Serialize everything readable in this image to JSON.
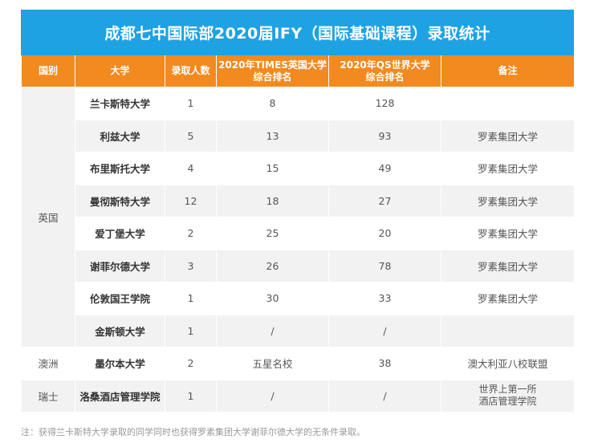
{
  "title": "成都七中国际部2020届IFY（国际基础课程）录取统计",
  "headers": {
    "country": "国别",
    "university": "大学",
    "admitted": "录取人数",
    "times_line1": "2020年TIMES英国大学",
    "times_line2": "综合排名",
    "qs_line1": "2020年QS世界大学",
    "qs_line2": "综合排名",
    "remark": "备注"
  },
  "countries": {
    "uk": "英国",
    "au": "澳洲",
    "ch": "瑞士"
  },
  "rows": [
    {
      "university": "兰卡斯特大学",
      "admitted": "1",
      "times": "8",
      "qs": "128",
      "remark": ""
    },
    {
      "university": "利兹大学",
      "admitted": "5",
      "times": "13",
      "qs": "93",
      "remark": "罗素集团大学"
    },
    {
      "university": "布里斯托大学",
      "admitted": "4",
      "times": "15",
      "qs": "49",
      "remark": "罗素集团大学"
    },
    {
      "university": "曼彻斯特大学",
      "admitted": "12",
      "times": "18",
      "qs": "27",
      "remark": "罗素集团大学"
    },
    {
      "university": "爱丁堡大学",
      "admitted": "2",
      "times": "25",
      "qs": "20",
      "remark": "罗素集团大学"
    },
    {
      "university": "谢菲尔德大学",
      "admitted": "3",
      "times": "26",
      "qs": "78",
      "remark": "罗素集团大学"
    },
    {
      "university": "伦敦国王学院",
      "admitted": "1",
      "times": "30",
      "qs": "33",
      "remark": "罗素集团大学"
    },
    {
      "university": "金斯顿大学",
      "admitted": "1",
      "times": "/",
      "qs": "/",
      "remark": ""
    },
    {
      "university": "墨尔本大学",
      "admitted": "2",
      "times": "五星名校",
      "qs": "38",
      "remark": "澳大利亚八校联盟"
    },
    {
      "university": "洛桑酒店管理学院",
      "admitted": "1",
      "times": "/",
      "qs": "/",
      "remark_line1": "世界上第一所",
      "remark_line2": "酒店管理学院"
    }
  ],
  "footnote": "注：获得兰卡斯特大学录取的同学同时也获得罗素集团大学谢菲尔德大学的无条件录取。"
}
